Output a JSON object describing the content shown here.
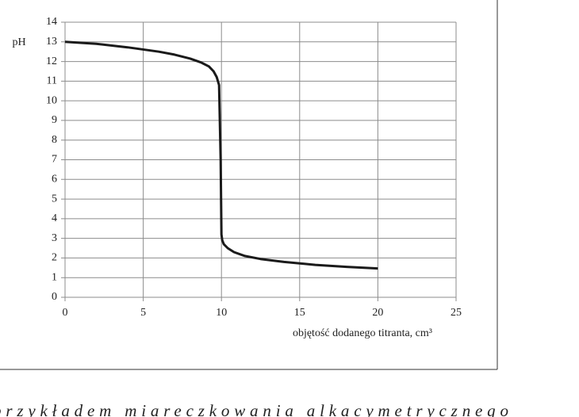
{
  "chart_data": {
    "type": "line",
    "y_label": "pH",
    "x_label": "objętość dodanego titranta, cm³",
    "x": [
      0,
      2,
      4,
      6,
      7,
      8,
      8.7,
      9.2,
      9.5,
      9.7,
      9.85,
      9.95,
      10.0,
      10.05,
      10.15,
      10.4,
      10.8,
      11.5,
      12.5,
      14,
      16,
      18,
      20
    ],
    "series": [
      {
        "name": "pH",
        "color": "#1a1a1a",
        "values": [
          13,
          12.9,
          12.72,
          12.5,
          12.35,
          12.15,
          11.95,
          11.75,
          11.5,
          11.2,
          10.8,
          7.0,
          3.2,
          2.9,
          2.7,
          2.5,
          2.3,
          2.1,
          1.95,
          1.8,
          1.65,
          1.55,
          1.47
        ]
      }
    ],
    "xlim": [
      0,
      25
    ],
    "ylim": [
      0,
      14
    ],
    "xticks": [
      0,
      5,
      10,
      15,
      20,
      25
    ],
    "yticks": [
      0,
      1,
      2,
      3,
      4,
      5,
      6,
      7,
      8,
      9,
      10,
      11,
      12,
      13,
      14
    ],
    "grid": true
  },
  "footer_text": "przykładem miareczkowania alkacymetrycznego"
}
